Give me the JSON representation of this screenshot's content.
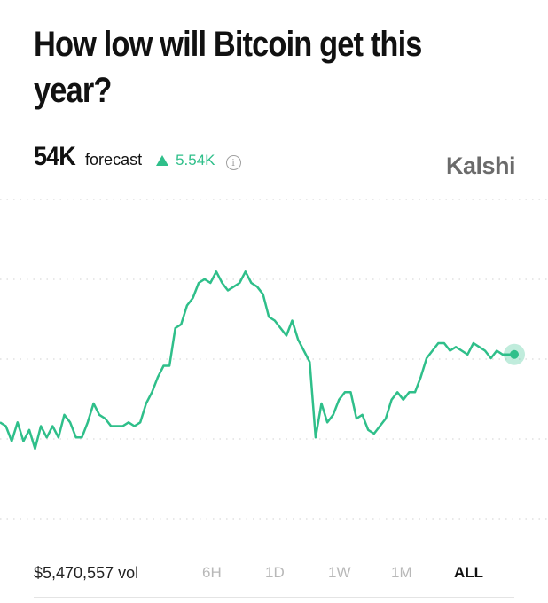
{
  "title": "How low will Bitcoin get this year?",
  "forecast": {
    "value": "54K",
    "label": "forecast",
    "delta": "5.54K"
  },
  "brand": "Kalshi",
  "volume": "$5,470,557 vol",
  "ranges": [
    {
      "label": "6H",
      "active": false
    },
    {
      "label": "1D",
      "active": false
    },
    {
      "label": "1W",
      "active": false
    },
    {
      "label": "1M",
      "active": false
    },
    {
      "label": "ALL",
      "active": true
    }
  ],
  "colors": {
    "line": "#2fbf8a",
    "up": "#2fbf8a",
    "grid": "#d9d9d9",
    "brand": "#6b6b6b"
  },
  "chart_data": {
    "type": "line",
    "grid": true,
    "series": [
      {
        "values": [
          55,
          54,
          50,
          55,
          50,
          53,
          48,
          54,
          51,
          54,
          51,
          57,
          55,
          51,
          51,
          55,
          60,
          57,
          56,
          54,
          54,
          54,
          55,
          54,
          55,
          60,
          63,
          67,
          70,
          70,
          80,
          81,
          86,
          88,
          92,
          93,
          92,
          95,
          92,
          90,
          91,
          92,
          95,
          92,
          91,
          89,
          83,
          82,
          80,
          78,
          82,
          77,
          74,
          71,
          51,
          60,
          55,
          57,
          61,
          63,
          63,
          56,
          57,
          53,
          52,
          54,
          56,
          61,
          63,
          61,
          63,
          63,
          67,
          72,
          74,
          76,
          76,
          74,
          75,
          74,
          73,
          76,
          75,
          74,
          72,
          74,
          73,
          73,
          73
        ]
      }
    ]
  }
}
